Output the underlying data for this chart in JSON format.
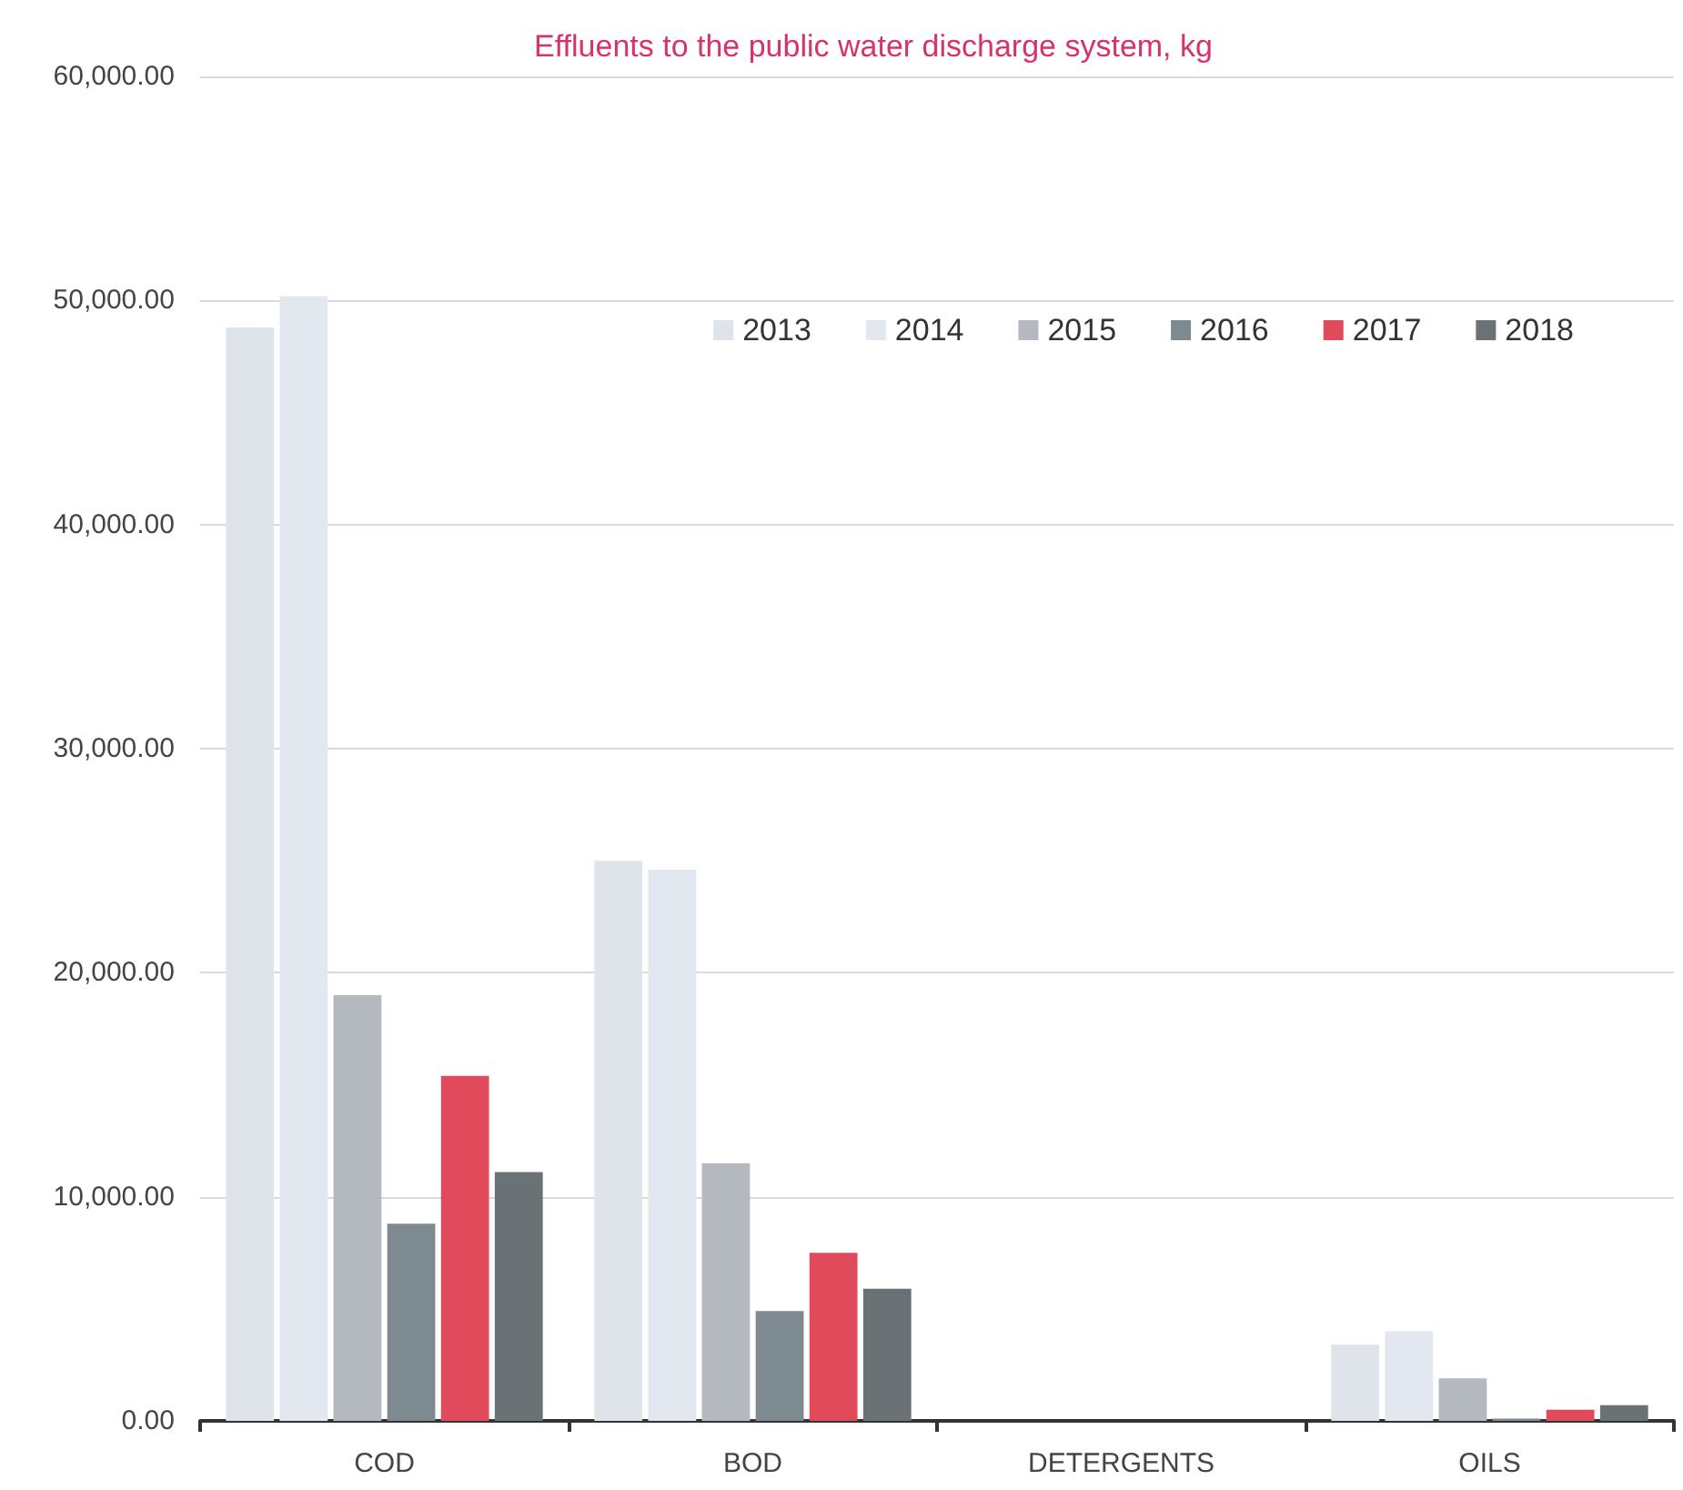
{
  "chart_data": {
    "type": "bar",
    "title": "Effluents to the public water discharge system, kg",
    "categories": [
      "COD",
      "BOD",
      "DETERGENTS",
      "OILS"
    ],
    "series": [
      {
        "name": "2013",
        "color": "#dfe3ea",
        "values": [
          48800,
          25000,
          0,
          3400
        ]
      },
      {
        "name": "2014",
        "color": "#e3e7ef",
        "values": [
          50200,
          24600,
          0,
          4000
        ]
      },
      {
        "name": "2015",
        "color": "#b4b9c0",
        "values": [
          19000,
          11500,
          0,
          1900
        ]
      },
      {
        "name": "2016",
        "color": "#7d8a90",
        "values": [
          8800,
          4900,
          0,
          100
        ]
      },
      {
        "name": "2017",
        "color": "#e04a5a",
        "values": [
          15400,
          7500,
          0,
          500
        ]
      },
      {
        "name": "2018",
        "color": "#6b7276",
        "values": [
          11100,
          5900,
          0,
          700
        ]
      }
    ],
    "ylim": [
      0,
      60000
    ],
    "yticks": [
      {
        "value": 0,
        "label": "0.00"
      },
      {
        "value": 10000,
        "label": "10,000.00"
      },
      {
        "value": 20000,
        "label": "20,000.00"
      },
      {
        "value": 30000,
        "label": "30,000.00"
      },
      {
        "value": 40000,
        "label": "40,000.00"
      },
      {
        "value": 50000,
        "label": "50,000.00"
      },
      {
        "value": 60000,
        "label": "60,000.00"
      }
    ],
    "grid": "y",
    "legend": "top right"
  }
}
